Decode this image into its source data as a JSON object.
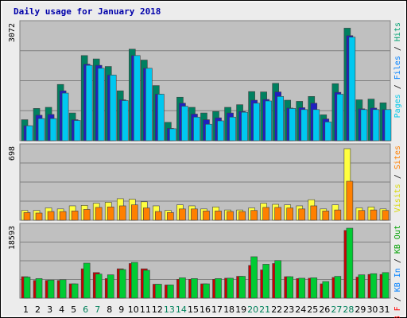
{
  "chart_data": {
    "type": "bar",
    "title": "Daily usage for January 2018",
    "days": [
      "1",
      "2",
      "3",
      "4",
      "5",
      "6",
      "7",
      "8",
      "9",
      "10",
      "11",
      "12",
      "13",
      "14",
      "15",
      "16",
      "17",
      "18",
      "19",
      "20",
      "21",
      "22",
      "23",
      "24",
      "25",
      "26",
      "27",
      "28",
      "29",
      "30",
      "31"
    ],
    "weekend_days": [
      6,
      7,
      13,
      14,
      20,
      21,
      27,
      28
    ],
    "panels": [
      {
        "id": "pages-files-hits",
        "max_label": "3072",
        "ymax": 3072,
        "legend": [
          {
            "text": "Pages",
            "color": "#00c8e8"
          },
          {
            "text": " / ",
            "color": "#000000"
          },
          {
            "text": "Files",
            "color": "#0080ff"
          },
          {
            "text": " / ",
            "color": "#000000"
          },
          {
            "text": "Hits",
            "color": "#00a070"
          }
        ],
        "series": [
          {
            "name": "Hits",
            "color": "#008060",
            "values": [
              560,
              860,
              890,
              1500,
              740,
              2270,
              2180,
              1980,
              1330,
              2440,
              2150,
              1470,
              490,
              1160,
              890,
              740,
              780,
              890,
              960,
              1310,
              1300,
              1530,
              1080,
              1050,
              1180,
              690,
              1520,
              3000,
              1090,
              1110,
              1010
            ]
          },
          {
            "name": "Files",
            "color": "#2020c0",
            "values": [
              400,
              680,
              700,
              1330,
              560,
              2040,
              2010,
              1750,
              1090,
              2270,
              1930,
              1240,
              330,
              1000,
              710,
              560,
              610,
              740,
              780,
              1080,
              1100,
              1300,
              870,
              880,
              1000,
              580,
              1290,
              2800,
              850,
              870,
              830
            ]
          },
          {
            "name": "Pages",
            "color": "#00c8f0",
            "values": [
              400,
              590,
              590,
              1270,
              540,
              2010,
              1930,
              1750,
              1070,
              2270,
              1930,
              1240,
              320,
              920,
              630,
              440,
              530,
              630,
              760,
              1000,
              1060,
              1180,
              860,
              830,
              830,
              500,
              1240,
              2760,
              830,
              830,
              830
            ]
          }
        ]
      },
      {
        "id": "visits-sites",
        "max_label": "698",
        "ymax": 698,
        "legend": [
          {
            "text": "Visits",
            "color": "#d8d800"
          },
          {
            "text": " / ",
            "color": "#000000"
          },
          {
            "text": "Sites",
            "color": "#ff8000"
          }
        ],
        "series": [
          {
            "name": "Visits",
            "color": "#ffff40",
            "values": [
              95,
              95,
              120,
              110,
              140,
              145,
              165,
              175,
              210,
              205,
              180,
              140,
              95,
              150,
              140,
              110,
              130,
              100,
              100,
              120,
              165,
              155,
              150,
              140,
              200,
              110,
              150,
              698,
              120,
              130,
              110
            ]
          },
          {
            "name": "Sites",
            "color": "#ff8000",
            "values": [
              75,
              70,
              85,
              85,
              90,
              105,
              125,
              130,
              140,
              150,
              120,
              85,
              75,
              110,
              110,
              90,
              90,
              85,
              85,
              95,
              125,
              125,
              120,
              110,
              140,
              90,
              100,
              380,
              95,
              100,
              95
            ]
          }
        ]
      },
      {
        "id": "kbf-kbin-kbout",
        "max_label": "18593",
        "ymax": 18593,
        "legend": [
          {
            "text": "KB F",
            "color": "#ff0000"
          },
          {
            "text": " / ",
            "color": "#000000"
          },
          {
            "text": "KB In",
            "color": "#0080ff"
          },
          {
            "text": " / ",
            "color": "#000000"
          },
          {
            "text": "KB Out",
            "color": "#00a000"
          }
        ],
        "series": [
          {
            "name": "KB F",
            "color": "#cc0000",
            "values": [
              5700,
              4700,
              4700,
              4700,
              3800,
              7800,
              6800,
              5200,
              7800,
              9200,
              7800,
              3700,
              3500,
              5000,
              5000,
              3800,
              5000,
              5300,
              5800,
              8700,
              7500,
              9200,
              5700,
              5200,
              5300,
              3800,
              5500,
              18000,
              5600,
              6300,
              6300
            ]
          },
          {
            "name": "KB Out",
            "color": "#00cc33",
            "values": [
              5600,
              5200,
              4800,
              4900,
              3800,
              9300,
              6400,
              6200,
              7600,
              9500,
              7400,
              3700,
              3500,
              5400,
              5200,
              3800,
              5200,
              5300,
              5800,
              11000,
              9000,
              10000,
              5700,
              5300,
              5400,
              4400,
              5800,
              18593,
              6200,
              6500,
              6800
            ]
          }
        ]
      }
    ]
  }
}
